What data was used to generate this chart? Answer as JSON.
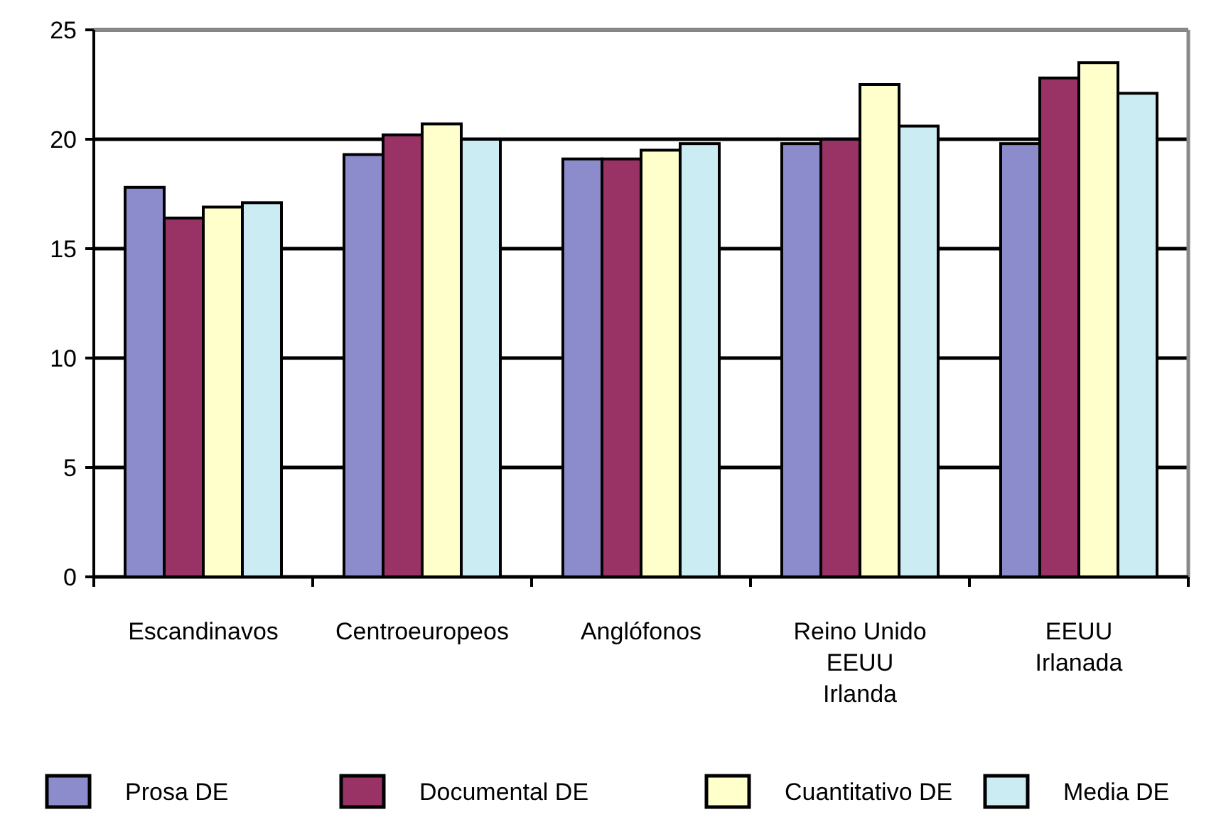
{
  "chart_data": {
    "type": "bar",
    "categories": [
      "Escandinavos",
      "Centroeuropeos",
      "Anglófonos",
      "Reino Unido\nEEUU\nIrlanda",
      "EEUU\nIrlanada"
    ],
    "series": [
      {
        "name": "Prosa DE",
        "color": "#8c8ccc",
        "values": [
          17.8,
          19.3,
          19.1,
          19.8,
          19.8
        ]
      },
      {
        "name": "Documental DE",
        "color": "#993366",
        "values": [
          16.4,
          20.2,
          19.1,
          20.0,
          22.8
        ]
      },
      {
        "name": "Cuantitativo DE",
        "color": "#ffffcc",
        "values": [
          16.9,
          20.7,
          19.5,
          22.5,
          23.5
        ]
      },
      {
        "name": "Media DE",
        "color": "#ccecf4",
        "values": [
          17.1,
          20.0,
          19.8,
          20.6,
          22.1
        ]
      }
    ],
    "ylim": [
      0,
      25
    ],
    "yticks": [
      0,
      5,
      10,
      15,
      20,
      25
    ],
    "grid": "y",
    "legend": "bottom"
  }
}
